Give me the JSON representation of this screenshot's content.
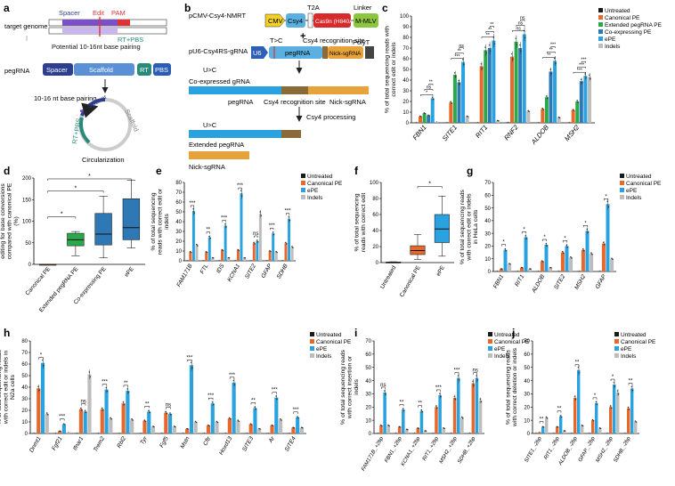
{
  "colors": {
    "untreated": "#1a1a1a",
    "canonical": "#e8672a",
    "extended": "#2aa84a",
    "coexp": "#2e78b5",
    "epe": "#2aa2e0",
    "indels": "#bdbdbd",
    "spacer": "#2d3e8f",
    "scaffold": "#5b8fd6",
    "rt": "#2a8a7a",
    "pbs": "#2a5db5",
    "pam": "#d33",
    "edit": "#d33",
    "purple": "#7b4fc8",
    "cmv": "#f2d024",
    "csy4": "#5ab0e0",
    "cas9": "#d82a2a",
    "mmlv": "#8cc63f",
    "u6": "#2d5fb8",
    "nick": "#e8a23a",
    "polyt": "#444",
    "pink": "#d23a8a"
  },
  "panels": {
    "a": "a",
    "b": "b",
    "c": "c",
    "d": "d",
    "e": "e",
    "f": "f",
    "g": "g",
    "h": "h",
    "i": "i",
    "j": "j"
  },
  "panel_a": {
    "target_genome": "target genome",
    "spacer": "Spacer",
    "edit": "Edit",
    "pam": "PAM",
    "rt_pbs": "RT+PBS",
    "potential": "Potential 10-16nt base pairing",
    "pegrna": "pegRNA",
    "scaffold": "Scaffold",
    "rt": "RT",
    "pbs": "PBS",
    "pairing": "10-16 nt base pairing",
    "circ_spacer": "Spacer",
    "circ_scaffold": "Scaffold",
    "circ_rt_pbs": "RT+PBS",
    "circularization": "Circularization"
  },
  "panel_b": {
    "construct1": "pCMV-Csy4-NMRT",
    "cmv": "CMV",
    "csy4": "Csy4",
    "t2a": "T2A",
    "cas9": "Cas9n (H840A)",
    "linker": "Linker",
    "mmlv": "M-MLV",
    "plus": "+",
    "construct2": "pU6-Csy4RS-gRNA",
    "u6": "U6",
    "tc": "T>C",
    "recog": "Csy4 recognition site",
    "polyt": "PolyT",
    "pegrna": "pegRNA",
    "nick": "Nick-sgRNA",
    "uc1": "U>C",
    "coexpressed": "Co-expressed gRNA",
    "lbl_peg": "pegRNA",
    "lbl_recog": "Csy4 recognition site",
    "lbl_nick": "Nick-sgRNA",
    "processing": "Csy4 processing",
    "uc2": "U>C",
    "extended": "Extended pegRNA",
    "nicksg": "Nick-sgRNA"
  },
  "chart_data": [
    {
      "id": "c",
      "type": "bar",
      "ylabel": "% of total sequencing reads with correct edit or indels",
      "ylim": [
        0,
        100
      ],
      "yticks": [
        "0",
        "10",
        "20",
        "30",
        "40",
        "50",
        "60",
        "70",
        "80",
        "90",
        "100"
      ],
      "categories": [
        "FBN1",
        "SITE1",
        "RIT1",
        "RNF2",
        "ALDOB",
        "MSH2"
      ],
      "series": [
        {
          "name": "Untreated",
          "color_key": "untreated",
          "values": [
            0.3,
            0.3,
            0.3,
            0.5,
            0.3,
            0.4
          ]
        },
        {
          "name": "Canonical PE",
          "color_key": "canonical",
          "values": [
            6,
            19,
            53,
            62,
            13,
            12
          ]
        },
        {
          "name": "Extended pegRNA PE",
          "color_key": "extended",
          "values": [
            9,
            45,
            68,
            76,
            24,
            20
          ]
        },
        {
          "name": "Co-expressing PE",
          "color_key": "coexp",
          "values": [
            7,
            38,
            70,
            70,
            48,
            39
          ]
        },
        {
          "name": "ePE",
          "color_key": "epe",
          "values": [
            23,
            57,
            77,
            83,
            58,
            44
          ]
        },
        {
          "name": "Indels",
          "color_key": "indels",
          "values": [
            1,
            6,
            2,
            11,
            5,
            43
          ]
        }
      ],
      "sig": [
        "*",
        "ns",
        "**",
        "***",
        "**",
        "ns",
        "**",
        "**",
        "**",
        "ns",
        "ns",
        "ns",
        "**",
        "**",
        "***",
        "***",
        "***",
        "***"
      ]
    },
    {
      "id": "d",
      "type": "box",
      "ylabel": "Normalized increase of prime editing for base conversions compared with canonical PE (%)",
      "ylim": [
        0,
        200
      ],
      "yticks": [
        "0",
        "50",
        "100",
        "150",
        "200"
      ],
      "categories": [
        "Canonical PE",
        "Extended pegRNA PE",
        "Co-expressing PE",
        "ePE"
      ],
      "boxes": [
        {
          "name": "Canonical PE",
          "color_key": "canonical",
          "min": 0,
          "q1": 0,
          "median": 0,
          "q3": 0,
          "max": 0
        },
        {
          "name": "Extended pegRNA PE",
          "color_key": "extended",
          "min": 20,
          "q1": 43,
          "median": 57,
          "q3": 72,
          "max": 76
        },
        {
          "name": "Co-expressing PE",
          "color_key": "coexp",
          "min": 15,
          "q1": 45,
          "median": 70,
          "q3": 118,
          "max": 158
        },
        {
          "name": "ePE",
          "color_key": "coexp",
          "min": 38,
          "q1": 57,
          "median": 85,
          "q3": 152,
          "max": 195
        }
      ],
      "sig": [
        "*",
        "*",
        "*"
      ]
    },
    {
      "id": "e",
      "type": "bar",
      "ylabel": "% of total sequencing reads with correct edit or indels",
      "ylim": [
        0,
        80
      ],
      "yticks": [
        "0",
        "10",
        "20",
        "30",
        "40",
        "50",
        "60",
        "70",
        "80"
      ],
      "categories": [
        "FAM171B",
        "FTL",
        "IDS",
        "KCNA1",
        "SITE2",
        "GFAP",
        "SDHB"
      ],
      "series": [
        {
          "name": "Untreated",
          "color_key": "untreated",
          "values": [
            0.3,
            0.3,
            0.3,
            0.3,
            0.3,
            0.3,
            0.3
          ]
        },
        {
          "name": "Canonical PE",
          "color_key": "canonical",
          "values": [
            9,
            9,
            11,
            11,
            18,
            10,
            18
          ]
        },
        {
          "name": "ePE",
          "color_key": "epe",
          "values": [
            51,
            24,
            36,
            69,
            20,
            28,
            43
          ]
        },
        {
          "name": "Indels",
          "color_key": "indels",
          "values": [
            16,
            3,
            3,
            3,
            48,
            9,
            14
          ]
        }
      ],
      "sig": [
        "***",
        "**",
        "***",
        "***",
        "ns",
        "***",
        "***"
      ]
    },
    {
      "id": "f",
      "type": "box",
      "ylabel": "% of total sequencing reads with correct edit",
      "ylim": [
        0,
        100
      ],
      "yticks": [
        "0",
        "20",
        "40",
        "60",
        "80",
        "100"
      ],
      "categories": [
        "Untreated",
        "Canonical PE",
        "ePE"
      ],
      "boxes": [
        {
          "name": "Untreated",
          "color_key": "untreated",
          "min": 0,
          "q1": 0,
          "median": 0.3,
          "q3": 0.6,
          "max": 1
        },
        {
          "name": "Canonical PE",
          "color_key": "canonical",
          "min": 4,
          "q1": 10,
          "median": 15,
          "q3": 21,
          "max": 35
        },
        {
          "name": "ePE",
          "color_key": "epe",
          "min": 8,
          "q1": 25,
          "median": 42,
          "q3": 60,
          "max": 83
        }
      ],
      "sig": [
        "*"
      ]
    },
    {
      "id": "g",
      "type": "bar",
      "ylabel": "% of total sequencing reads with correct edit or indels in HeLa cells",
      "ylim": [
        0,
        70
      ],
      "yticks": [
        "0",
        "10",
        "20",
        "30",
        "40",
        "50",
        "60",
        "70"
      ],
      "categories": [
        "FBN1",
        "RIT1",
        "ALDOB",
        "SITE2",
        "MSH2",
        "GFAP"
      ],
      "series": [
        {
          "name": "Untreated",
          "color_key": "untreated",
          "values": [
            0.3,
            0.3,
            0.3,
            0.3,
            0.3,
            0.3
          ]
        },
        {
          "name": "Canonical PE",
          "color_key": "canonical",
          "values": [
            2,
            3,
            8,
            15,
            17,
            22
          ]
        },
        {
          "name": "ePE",
          "color_key": "epe",
          "values": [
            17,
            27,
            21,
            20,
            32,
            53
          ]
        },
        {
          "name": "Indels",
          "color_key": "indels",
          "values": [
            6,
            2,
            3,
            11,
            14,
            10
          ]
        }
      ],
      "sig": [
        "*",
        "*",
        "*",
        "*",
        "*",
        "*"
      ]
    },
    {
      "id": "h",
      "type": "bar",
      "ylabel": "% of total sequencing reads with correct edit or indels in N2a cells",
      "ylim": [
        0,
        80
      ],
      "yticks": [
        "0",
        "10",
        "20",
        "30",
        "40",
        "50",
        "60",
        "70",
        "80"
      ],
      "categories": [
        "Dnmt1",
        "Fgf21",
        "Ifnar1",
        "Trem2",
        "Rbl2",
        "Tyr",
        "Fgf5",
        "Mstn",
        "Cftr",
        "Hoxd13",
        "SITE3",
        "Ar",
        "SITE4"
      ],
      "series": [
        {
          "name": "Untreated",
          "color_key": "untreated",
          "values": [
            0.3,
            0.3,
            0.3,
            0.3,
            0.3,
            0.3,
            0.3,
            0.3,
            0.3,
            0.3,
            0.3,
            0.3,
            0.3
          ]
        },
        {
          "name": "Canonical PE",
          "color_key": "canonical",
          "values": [
            39,
            2,
            21,
            21,
            26,
            11,
            18,
            4,
            7,
            13,
            8,
            7,
            5
          ]
        },
        {
          "name": "ePE",
          "color_key": "epe",
          "values": [
            61,
            8,
            19,
            38,
            37,
            19,
            17,
            59,
            26,
            44,
            22,
            31,
            14
          ]
        },
        {
          "name": "Indels",
          "color_key": "indels",
          "values": [
            17,
            1,
            51,
            13,
            12,
            6,
            6,
            10,
            10,
            11,
            4,
            12,
            5
          ]
        }
      ],
      "sig": [
        "*",
        "***",
        "ns",
        "***",
        "**",
        "**",
        "ns",
        "***",
        "***",
        "***",
        "**",
        "***",
        "***"
      ]
    },
    {
      "id": "i",
      "type": "bar",
      "ylabel": "% of total sequencing reads with correct insertion or indels",
      "ylim": [
        0,
        70
      ],
      "yticks": [
        "0",
        "10",
        "20",
        "30",
        "40",
        "50",
        "60",
        "70"
      ],
      "categories": [
        "FAM171B_+2bp",
        "FBN1_+2bp",
        "KCNA1_+2bp",
        "RIT1_+2bp",
        "MSH2_+2bp",
        "SDHB_+2bp"
      ],
      "series": [
        {
          "name": "Untreated",
          "color_key": "untreated",
          "values": [
            0.3,
            0.3,
            0.3,
            0.3,
            0.3,
            0.3
          ]
        },
        {
          "name": "Canonical PE",
          "color_key": "canonical",
          "values": [
            6,
            5,
            4,
            20,
            27,
            38
          ]
        },
        {
          "name": "ePE",
          "color_key": "epe",
          "values": [
            31,
            18,
            17,
            29,
            42,
            42
          ]
        },
        {
          "name": "Indels",
          "color_key": "indels",
          "values": [
            6,
            3,
            2,
            4,
            12,
            25
          ]
        }
      ],
      "sig": [
        "ns",
        "**",
        "**",
        "***",
        "***",
        "ns"
      ]
    },
    {
      "id": "j",
      "type": "bar",
      "ylabel": "% of total sequencing reads with correct deletion or indels",
      "ylim": [
        0,
        70
      ],
      "yticks": [
        "0",
        "10",
        "20",
        "30",
        "40",
        "50",
        "60",
        "70"
      ],
      "categories": [
        "SITE1_-2bp",
        "RIT1_-2bp",
        "ALDOB_-2bp",
        "GFAP_-2bp",
        "MSH2_-2bp",
        "SDHB_-2bp"
      ],
      "series": [
        {
          "name": "Untreated",
          "color_key": "untreated",
          "values": [
            0.3,
            0.3,
            0.3,
            0.3,
            0.3,
            0.3
          ]
        },
        {
          "name": "Canonical PE",
          "color_key": "canonical",
          "values": [
            1,
            5,
            27,
            10,
            20,
            19
          ]
        },
        {
          "name": "ePE",
          "color_key": "epe",
          "values": [
            5,
            13,
            48,
            23,
            37,
            34
          ]
        },
        {
          "name": "Indels",
          "color_key": "indels",
          "values": [
            12,
            2,
            6,
            4,
            31,
            9
          ]
        }
      ],
      "sig": [
        "**",
        "**",
        "**",
        "*",
        "*",
        "**"
      ]
    }
  ]
}
